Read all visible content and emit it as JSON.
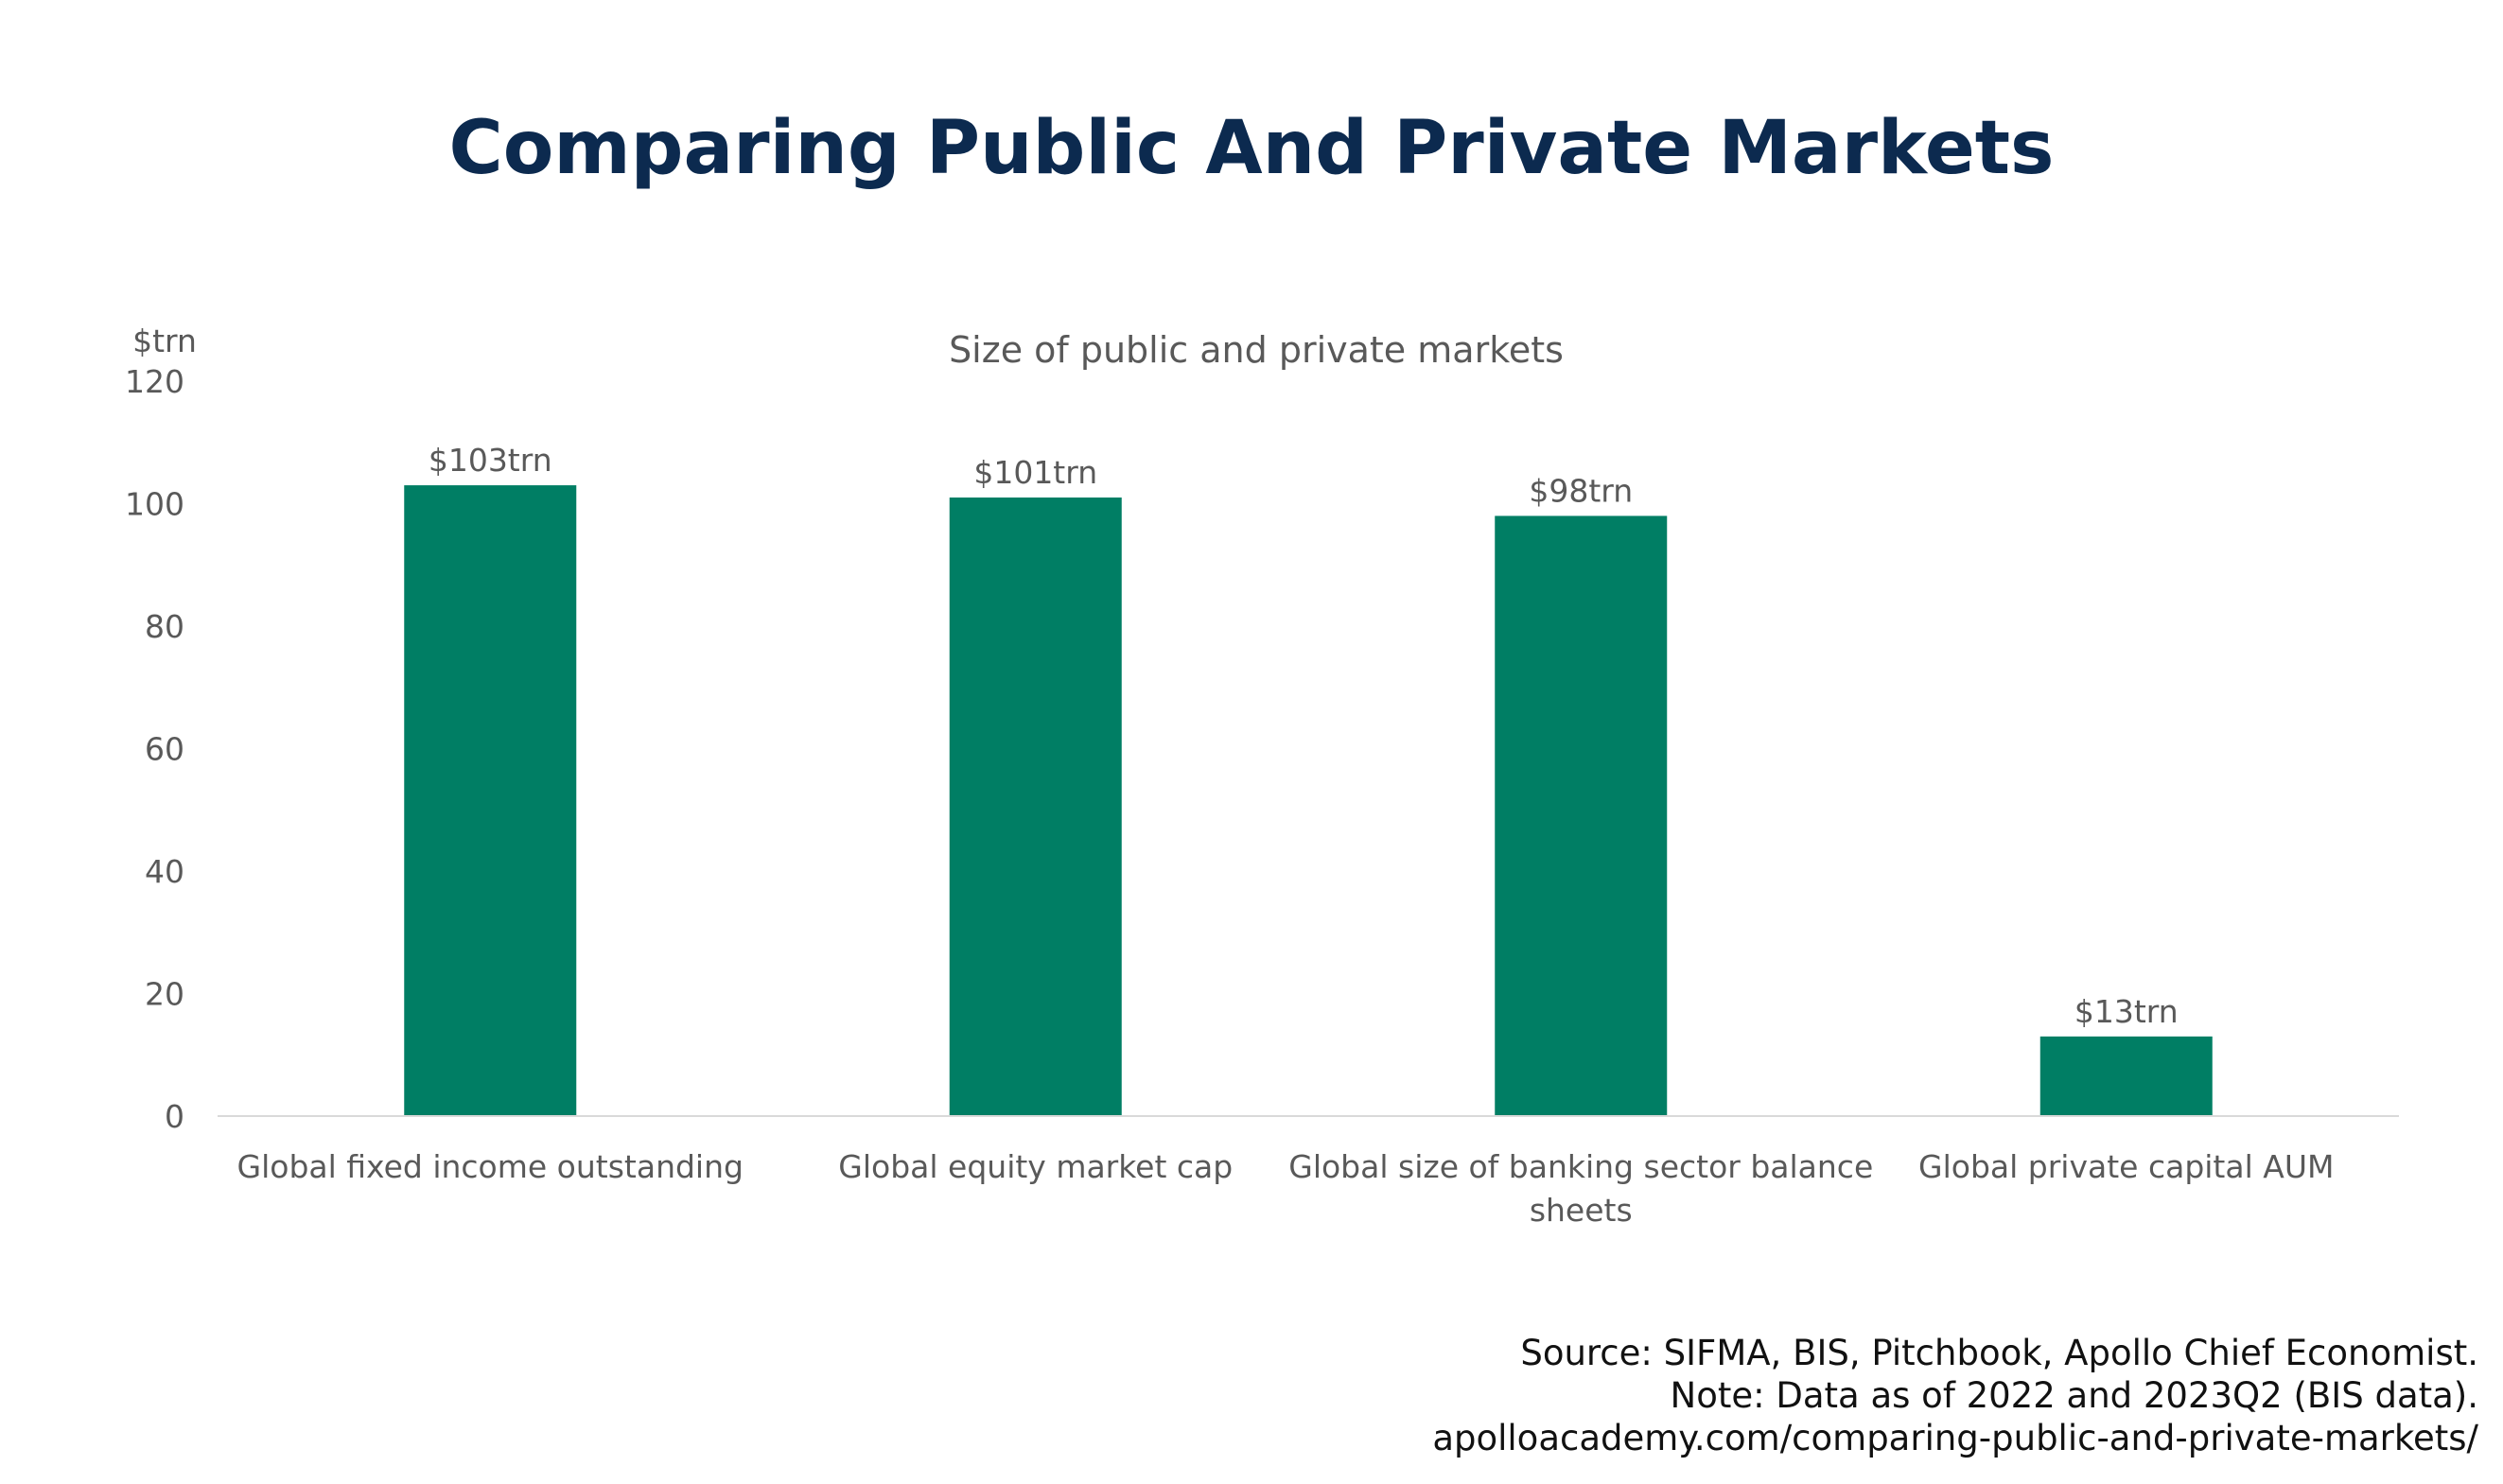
{
  "page": {
    "title": "Comparing Public And Private Markets",
    "source_lines": [
      "Source: SIFMA, BIS, Pitchbook, Apollo Chief Economist.",
      "Note: Data as of 2022 and 2023Q2 (BIS data).",
      "apolloacademy.com/comparing-public-and-private-markets/"
    ]
  },
  "colors": {
    "title": "#0c2a4f",
    "bar": "#007e64",
    "text": "#595959",
    "axis_line": "#d9d9d9"
  },
  "chart_data": {
    "type": "bar",
    "title": "Size of public and private markets",
    "ylabel": "$trn",
    "xlabel": "",
    "ylim": [
      0,
      120
    ],
    "yticks": [
      0,
      20,
      40,
      60,
      80,
      100,
      120
    ],
    "grid": false,
    "legend": "none",
    "categories": [
      [
        "Global fixed income outstanding"
      ],
      [
        "Global equity market cap"
      ],
      [
        "Global size of banking sector balance",
        "sheets"
      ],
      [
        "Global private capital AUM"
      ]
    ],
    "values": [
      103,
      101,
      98,
      13
    ],
    "data_labels": [
      "$103trn",
      "$101trn",
      "$98trn",
      "$13trn"
    ]
  }
}
